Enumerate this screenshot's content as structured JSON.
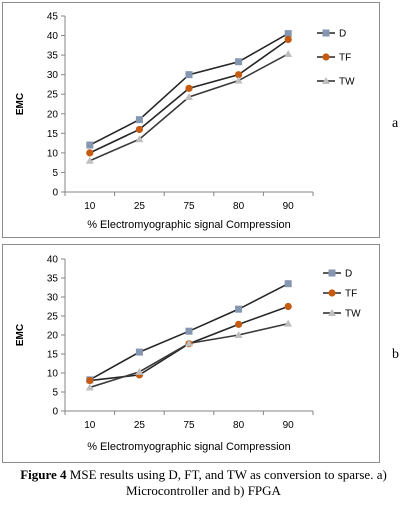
{
  "panel_labels": {
    "a": "a",
    "b": "b"
  },
  "caption": {
    "label": "Figure 4",
    "text": "MSE results using D, FT, and TW as conversion to sparse. a) Microcontroller and b) FPGA"
  },
  "chart_data": [
    {
      "type": "line",
      "title": "",
      "xlabel": "% Electromyographic signal Compression",
      "ylabel": "EMC",
      "categories": [
        "10",
        "25",
        "75",
        "80",
        "90"
      ],
      "ylim": [
        0,
        45
      ],
      "yticks": [
        0,
        5,
        10,
        15,
        20,
        25,
        30,
        35,
        40,
        45
      ],
      "grid": false,
      "legend": "right",
      "series": [
        {
          "name": "D",
          "color": "#8496b0",
          "marker": "square",
          "values": [
            12,
            18.5,
            30,
            33.3,
            40.5
          ]
        },
        {
          "name": "TF",
          "color": "#c55a11",
          "marker": "circle",
          "values": [
            10,
            16,
            26.5,
            30,
            39
          ]
        },
        {
          "name": "TW",
          "color": "#bfbfbf",
          "marker": "triangle",
          "values": [
            8,
            13.5,
            24.3,
            28.5,
            35.3
          ]
        }
      ]
    },
    {
      "type": "line",
      "title": "",
      "xlabel": "% Electromyographic signal Compression",
      "ylabel": "EMC",
      "categories": [
        "10",
        "25",
        "75",
        "80",
        "90"
      ],
      "ylim": [
        0,
        40
      ],
      "yticks": [
        0,
        5,
        10,
        15,
        20,
        25,
        30,
        35,
        40
      ],
      "grid": false,
      "legend": "right",
      "series": [
        {
          "name": "D",
          "color": "#8496b0",
          "marker": "square",
          "values": [
            8.2,
            15.5,
            21,
            26.8,
            33.5
          ]
        },
        {
          "name": "TF",
          "color": "#c55a11",
          "marker": "circle",
          "values": [
            8,
            9.5,
            17.7,
            22.8,
            27.5
          ]
        },
        {
          "name": "TW",
          "color": "#bfbfbf",
          "marker": "triangle",
          "values": [
            6.2,
            10.3,
            17.8,
            20,
            23
          ]
        }
      ]
    }
  ]
}
